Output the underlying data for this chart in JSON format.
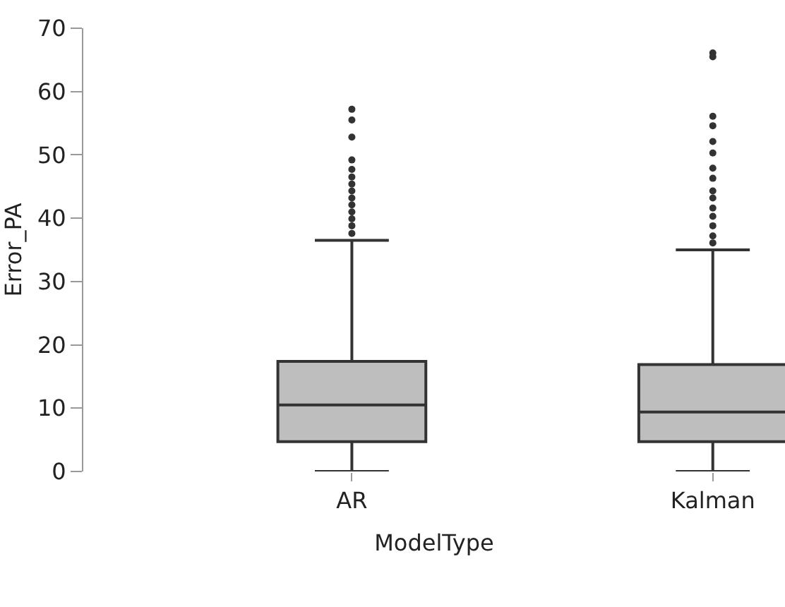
{
  "chart_data": {
    "type": "box",
    "xlabel": "ModelType",
    "ylabel": "Error_PA",
    "categories": [
      "AR",
      "Kalman"
    ],
    "color": "#bebebe",
    "ylim": [
      0,
      70
    ],
    "yticks": [
      0,
      10,
      20,
      30,
      40,
      50,
      60,
      70
    ],
    "boxes": [
      {
        "low": 0,
        "q1": 4.7,
        "median": 10.5,
        "q3": 17.4,
        "high": 36.5,
        "outliers": [
          57.2,
          55.5,
          52.8,
          49.2,
          47.7,
          46.5,
          45.4,
          44.3,
          43.2,
          42.1,
          41,
          39.9,
          38.8,
          37.6
        ]
      },
      {
        "low": 0,
        "q1": 4.7,
        "median": 9.4,
        "q3": 16.9,
        "high": 35,
        "outliers": [
          66.1,
          65.5,
          56.1,
          54.6,
          52.1,
          50.3,
          47.9,
          46.3,
          44.3,
          43.2,
          41.6,
          40.3,
          38.8,
          37.2,
          36.1
        ]
      }
    ]
  }
}
